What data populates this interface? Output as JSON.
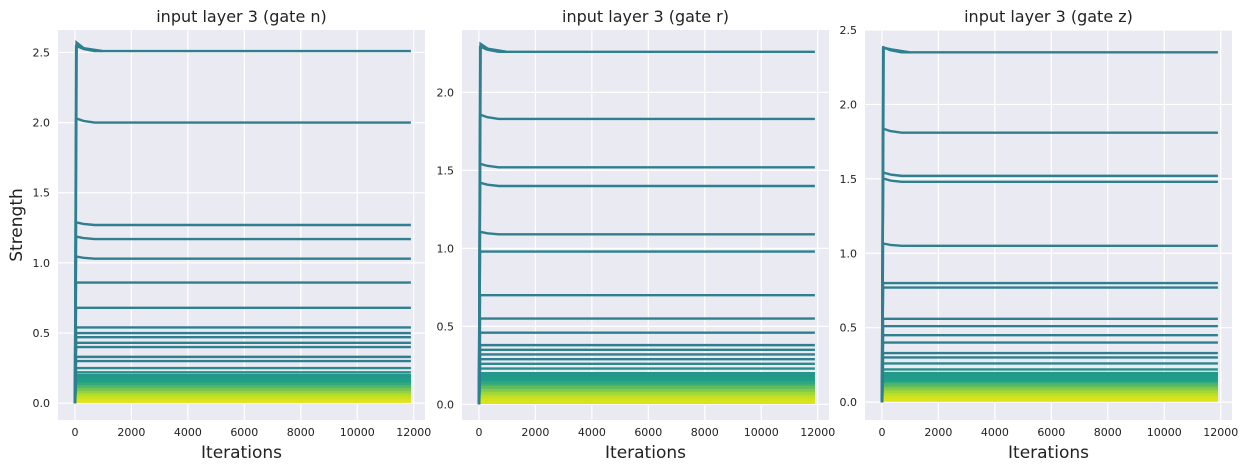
{
  "chart_data": [
    {
      "type": "line",
      "title": "input layer 3 (gate n)",
      "xlabel": "Iterations",
      "ylabel": "Strength",
      "xlim": [
        -600,
        12400
      ],
      "ylim": [
        -0.12,
        2.66
      ],
      "xticks": [
        0,
        2000,
        4000,
        6000,
        8000,
        10000,
        12000
      ],
      "yticks": [
        0.0,
        0.5,
        1.0,
        1.5,
        2.0,
        2.5
      ],
      "x_range": [
        0,
        11900
      ],
      "grid": true,
      "series_final_values": [
        2.51,
        2.0,
        1.27,
        1.17,
        1.03,
        0.86,
        0.68,
        0.54,
        0.5,
        0.47,
        0.43,
        0.4,
        0.33,
        0.3,
        0.25,
        0.22,
        0.2,
        0.18,
        0.16,
        0.14,
        0.12,
        0.1,
        0.08,
        0.06,
        0.04,
        0.02
      ],
      "peak": {
        "x": 60,
        "value": 2.57
      }
    },
    {
      "type": "line",
      "title": "input layer 3 (gate r)",
      "xlabel": "Iterations",
      "ylabel": "",
      "xlim": [
        -600,
        12400
      ],
      "ylim": [
        -0.1,
        2.4
      ],
      "xticks": [
        0,
        2000,
        4000,
        6000,
        8000,
        10000,
        12000
      ],
      "yticks": [
        0.0,
        0.5,
        1.0,
        1.5,
        2.0
      ],
      "x_range": [
        0,
        11900
      ],
      "grid": true,
      "series_final_values": [
        2.26,
        1.83,
        1.52,
        1.4,
        1.09,
        0.98,
        0.7,
        0.55,
        0.46,
        0.38,
        0.35,
        0.32,
        0.29,
        0.26,
        0.23,
        0.2,
        0.17,
        0.14,
        0.11,
        0.09,
        0.07,
        0.05,
        0.03,
        0.02
      ],
      "peak": {
        "x": 60,
        "value": 2.31
      }
    },
    {
      "type": "line",
      "title": "input layer 3 (gate z)",
      "xlabel": "Iterations",
      "ylabel": "",
      "xlim": [
        -600,
        12400
      ],
      "ylim": [
        -0.12,
        2.5
      ],
      "xticks": [
        0,
        2000,
        4000,
        6000,
        8000,
        10000,
        12000
      ],
      "yticks": [
        0.0,
        0.5,
        1.0,
        1.5,
        2.0,
        2.5
      ],
      "x_range": [
        0,
        11900
      ],
      "grid": true,
      "series_final_values": [
        2.35,
        1.81,
        1.52,
        1.48,
        1.05,
        0.8,
        0.77,
        0.56,
        0.51,
        0.45,
        0.4,
        0.33,
        0.3,
        0.26,
        0.22,
        0.18,
        0.15,
        0.12,
        0.09,
        0.07,
        0.05,
        0.03,
        0.02
      ],
      "peak": {
        "x": 60,
        "value": 2.38
      }
    }
  ],
  "colors": {
    "panel_bg": "#eaeaf2",
    "grid": "#ffffff",
    "line_high": "#2f7f8f",
    "line_mid": "#1fa187",
    "line_low": "#b5de2b",
    "line_lowest": "#dde318"
  }
}
